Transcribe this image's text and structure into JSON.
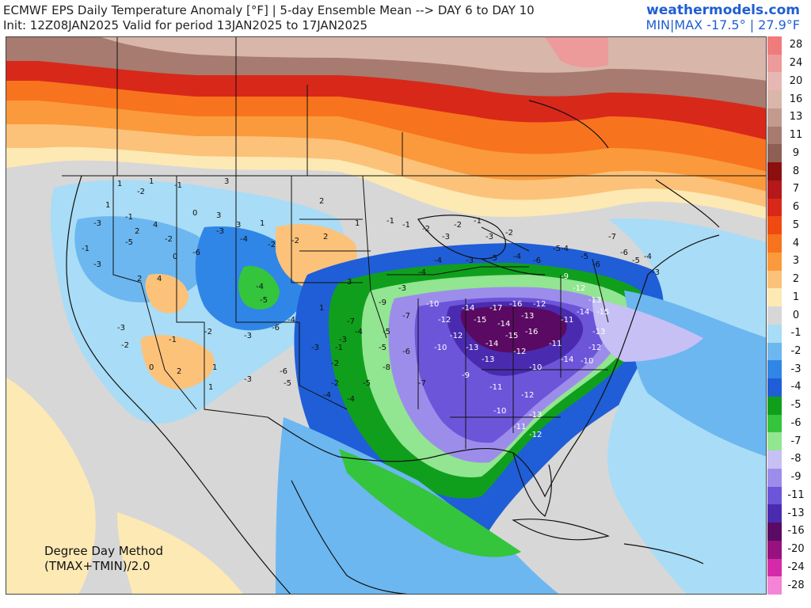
{
  "header": {
    "title_line1": "ECMWF EPS Daily Temperature Anomaly [°F] | 5-day Ensemble Mean --> DAY 6 to DAY 10",
    "title_line2": "Init: 12Z08JAN2025 Valid for period 13JAN2025 to 17JAN2025",
    "brand": "weathermodels.com",
    "minmax": "MIN|MAX -17.5° | 27.9°F"
  },
  "method": {
    "line1": "Degree Day Method",
    "line2": "(TMAX+TMIN)/2.0"
  },
  "colorbar": {
    "levels": [
      {
        "label": "28",
        "color": "#f07b7b"
      },
      {
        "label": "24",
        "color": "#ed9a9a"
      },
      {
        "label": "20",
        "color": "#e7b8b3"
      },
      {
        "label": "16",
        "color": "#d9b6aa"
      },
      {
        "label": "13",
        "color": "#c39a8e"
      },
      {
        "label": "11",
        "color": "#a77b70"
      },
      {
        "label": "9",
        "color": "#8d5f55"
      },
      {
        "label": "8",
        "color": "#8c0f10"
      },
      {
        "label": "7",
        "color": "#b5181a"
      },
      {
        "label": "6",
        "color": "#d8281a"
      },
      {
        "label": "5",
        "color": "#ef4a12"
      },
      {
        "label": "4",
        "color": "#f8731d"
      },
      {
        "label": "3",
        "color": "#fb9a3c"
      },
      {
        "label": "2",
        "color": "#fcc27a"
      },
      {
        "label": "1",
        "color": "#fde9b4"
      },
      {
        "label": "0",
        "color": "#d7d7d7"
      },
      {
        "label": "-1",
        "color": "#a9dcf6"
      },
      {
        "label": "-2",
        "color": "#6cb7f0"
      },
      {
        "label": "-3",
        "color": "#2f86e6"
      },
      {
        "label": "-4",
        "color": "#1f5ed7"
      },
      {
        "label": "-5",
        "color": "#0f9f1d"
      },
      {
        "label": "-6",
        "color": "#34c53c"
      },
      {
        "label": "-7",
        "color": "#92e591"
      },
      {
        "label": "-8",
        "color": "#c7c0f5"
      },
      {
        "label": "-9",
        "color": "#9d8deb"
      },
      {
        "label": "-11",
        "color": "#6d55da"
      },
      {
        "label": "-13",
        "color": "#4a2bb0"
      },
      {
        "label": "-16",
        "color": "#5a0a62"
      },
      {
        "label": "-20",
        "color": "#97127f"
      },
      {
        "label": "-24",
        "color": "#d42aa9"
      },
      {
        "label": "-28",
        "color": "#f484d6"
      }
    ]
  },
  "map_labels": {
    "northwest": [
      "1",
      "-2",
      "1",
      "-1",
      "3",
      "1",
      "-1",
      "-3",
      "0",
      "3",
      "2",
      "4",
      "-5",
      "-2",
      "-3",
      "3",
      "1",
      "-6",
      "-4",
      "0",
      "-2",
      "2",
      "4",
      "-1",
      "-3"
    ],
    "southwest": [
      "-3",
      "-2",
      "-1",
      "0",
      "2",
      "1",
      "-3",
      "-5",
      "-6",
      "-4",
      "-3",
      "-2",
      "1",
      "-4",
      "-5",
      "-2",
      "-3",
      "-4",
      "-6"
    ],
    "plains": [
      "2",
      "1",
      "-1",
      "2",
      "-2",
      "3",
      "1",
      "-4",
      "-5",
      "-7",
      "-9",
      "-7",
      "-5",
      "-6",
      "-8",
      "-7",
      "-5",
      "-4",
      "-3",
      "-2",
      "-1"
    ],
    "great_lakes": [
      "-1",
      "-2",
      "-3",
      "-2",
      "-1",
      "-3",
      "-2",
      "-4",
      "-3",
      "-5",
      "-4",
      "-6",
      "-5",
      "-4",
      "-3"
    ],
    "southeast": [
      "-10",
      "-12",
      "-14",
      "-15",
      "-17",
      "-16",
      "-14",
      "-13",
      "-12",
      "-11",
      "-10",
      "-12",
      "-13",
      "-14",
      "-15",
      "-16",
      "-13",
      "-12",
      "-11",
      "-10",
      "-9",
      "-11",
      "-12",
      "-13",
      "-14",
      "-11",
      "-12",
      "-10"
    ],
    "northeast": [
      "-4",
      "-5",
      "-6",
      "-7",
      "-6",
      "-5",
      "-4",
      "-3",
      "-9",
      "-12",
      "-13",
      "-14",
      "-15",
      "-13",
      "-12",
      "-10"
    ]
  }
}
